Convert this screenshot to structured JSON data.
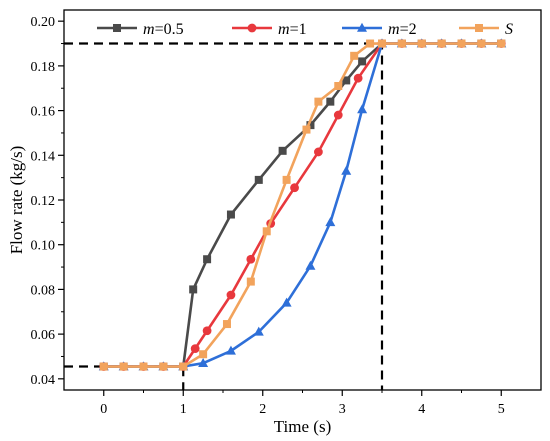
{
  "chart_data": {
    "type": "line",
    "xlabel": "Time (s)",
    "ylabel": "Flow rate  (kg/s)",
    "xlim": [
      -0.5,
      5.5
    ],
    "ylim": [
      0.035,
      0.205
    ],
    "xticks": [
      0,
      1,
      2,
      3,
      4,
      5
    ],
    "yticks": [
      0.04,
      0.06,
      0.08,
      0.1,
      0.12,
      0.14,
      0.16,
      0.18,
      0.2
    ],
    "xtick_labels": [
      "0",
      "1",
      "2",
      "3",
      "4",
      "5"
    ],
    "ytick_labels": [
      "0.04",
      "0.06",
      "0.08",
      "0.10",
      "0.12",
      "0.14",
      "0.16",
      "0.18",
      "0.20"
    ],
    "legend_position": "top",
    "grid": false,
    "reference_lines": [
      {
        "style": "dashed",
        "color": "#000000",
        "points": [
          [
            -0.5,
            0.0455
          ],
          [
            1.0,
            0.0455
          ],
          [
            1.0,
            0.035
          ]
        ]
      },
      {
        "style": "dashed",
        "color": "#000000",
        "points": [
          [
            -0.5,
            0.19
          ],
          [
            3.5,
            0.19
          ],
          [
            3.5,
            0.035
          ]
        ]
      }
    ],
    "series": [
      {
        "prefix": "m",
        "suffix": "=0.5",
        "prefix_italic": true,
        "color": "#4a4a4a",
        "marker": "square",
        "x": [
          0,
          0.25,
          0.5,
          0.75,
          1.0,
          1.125,
          1.3,
          1.6,
          1.95,
          2.25,
          2.6,
          2.85,
          3.05,
          3.25,
          3.5,
          3.75,
          4.0,
          4.25,
          4.5,
          4.75,
          5.0
        ],
        "y": [
          0.0455,
          0.0455,
          0.0455,
          0.0455,
          0.0455,
          0.08,
          0.0935,
          0.1135,
          0.129,
          0.142,
          0.1535,
          0.164,
          0.1735,
          0.182,
          0.19,
          0.19,
          0.19,
          0.19,
          0.19,
          0.19,
          0.19
        ]
      },
      {
        "prefix": "m",
        "suffix": "=1",
        "prefix_italic": true,
        "color": "#e8383d",
        "marker": "circle",
        "x": [
          0,
          0.25,
          0.5,
          0.75,
          1.0,
          1.15,
          1.3,
          1.6,
          1.85,
          2.1,
          2.4,
          2.7,
          2.95,
          3.2,
          3.5,
          3.75,
          4.0,
          4.25,
          4.5,
          4.75,
          5.0
        ],
        "y": [
          0.0455,
          0.0455,
          0.0455,
          0.0455,
          0.0455,
          0.0535,
          0.0615,
          0.0775,
          0.0935,
          0.1095,
          0.1255,
          0.1415,
          0.158,
          0.1745,
          0.19,
          0.19,
          0.19,
          0.19,
          0.19,
          0.19,
          0.19
        ]
      },
      {
        "prefix": "m",
        "suffix": "=2",
        "prefix_italic": true,
        "color": "#2e6fd8",
        "marker": "triangle",
        "x": [
          0,
          0.25,
          0.5,
          0.75,
          1.0,
          1.25,
          1.6,
          1.95,
          2.3,
          2.6,
          2.85,
          3.05,
          3.25,
          3.5,
          3.75,
          4.0,
          4.25,
          4.5,
          4.75,
          5.0
        ],
        "y": [
          0.0455,
          0.0455,
          0.0455,
          0.0455,
          0.0455,
          0.047,
          0.0525,
          0.061,
          0.074,
          0.0905,
          0.11,
          0.133,
          0.1605,
          0.19,
          0.19,
          0.19,
          0.19,
          0.19,
          0.19,
          0.19
        ]
      },
      {
        "prefix": "S",
        "suffix": "",
        "prefix_italic": true,
        "color": "#f2a35c",
        "marker": "square",
        "x": [
          0,
          0.25,
          0.5,
          0.75,
          1.0,
          1.25,
          1.55,
          1.85,
          2.05,
          2.3,
          2.55,
          2.7,
          2.95,
          3.15,
          3.35,
          3.5,
          3.75,
          4.0,
          4.25,
          4.5,
          4.75,
          5.0
        ],
        "y": [
          0.0455,
          0.0455,
          0.0455,
          0.0455,
          0.0455,
          0.051,
          0.0645,
          0.0835,
          0.106,
          0.129,
          0.1515,
          0.164,
          0.171,
          0.1845,
          0.19,
          0.19,
          0.19,
          0.19,
          0.19,
          0.19,
          0.19,
          0.19
        ]
      }
    ]
  }
}
